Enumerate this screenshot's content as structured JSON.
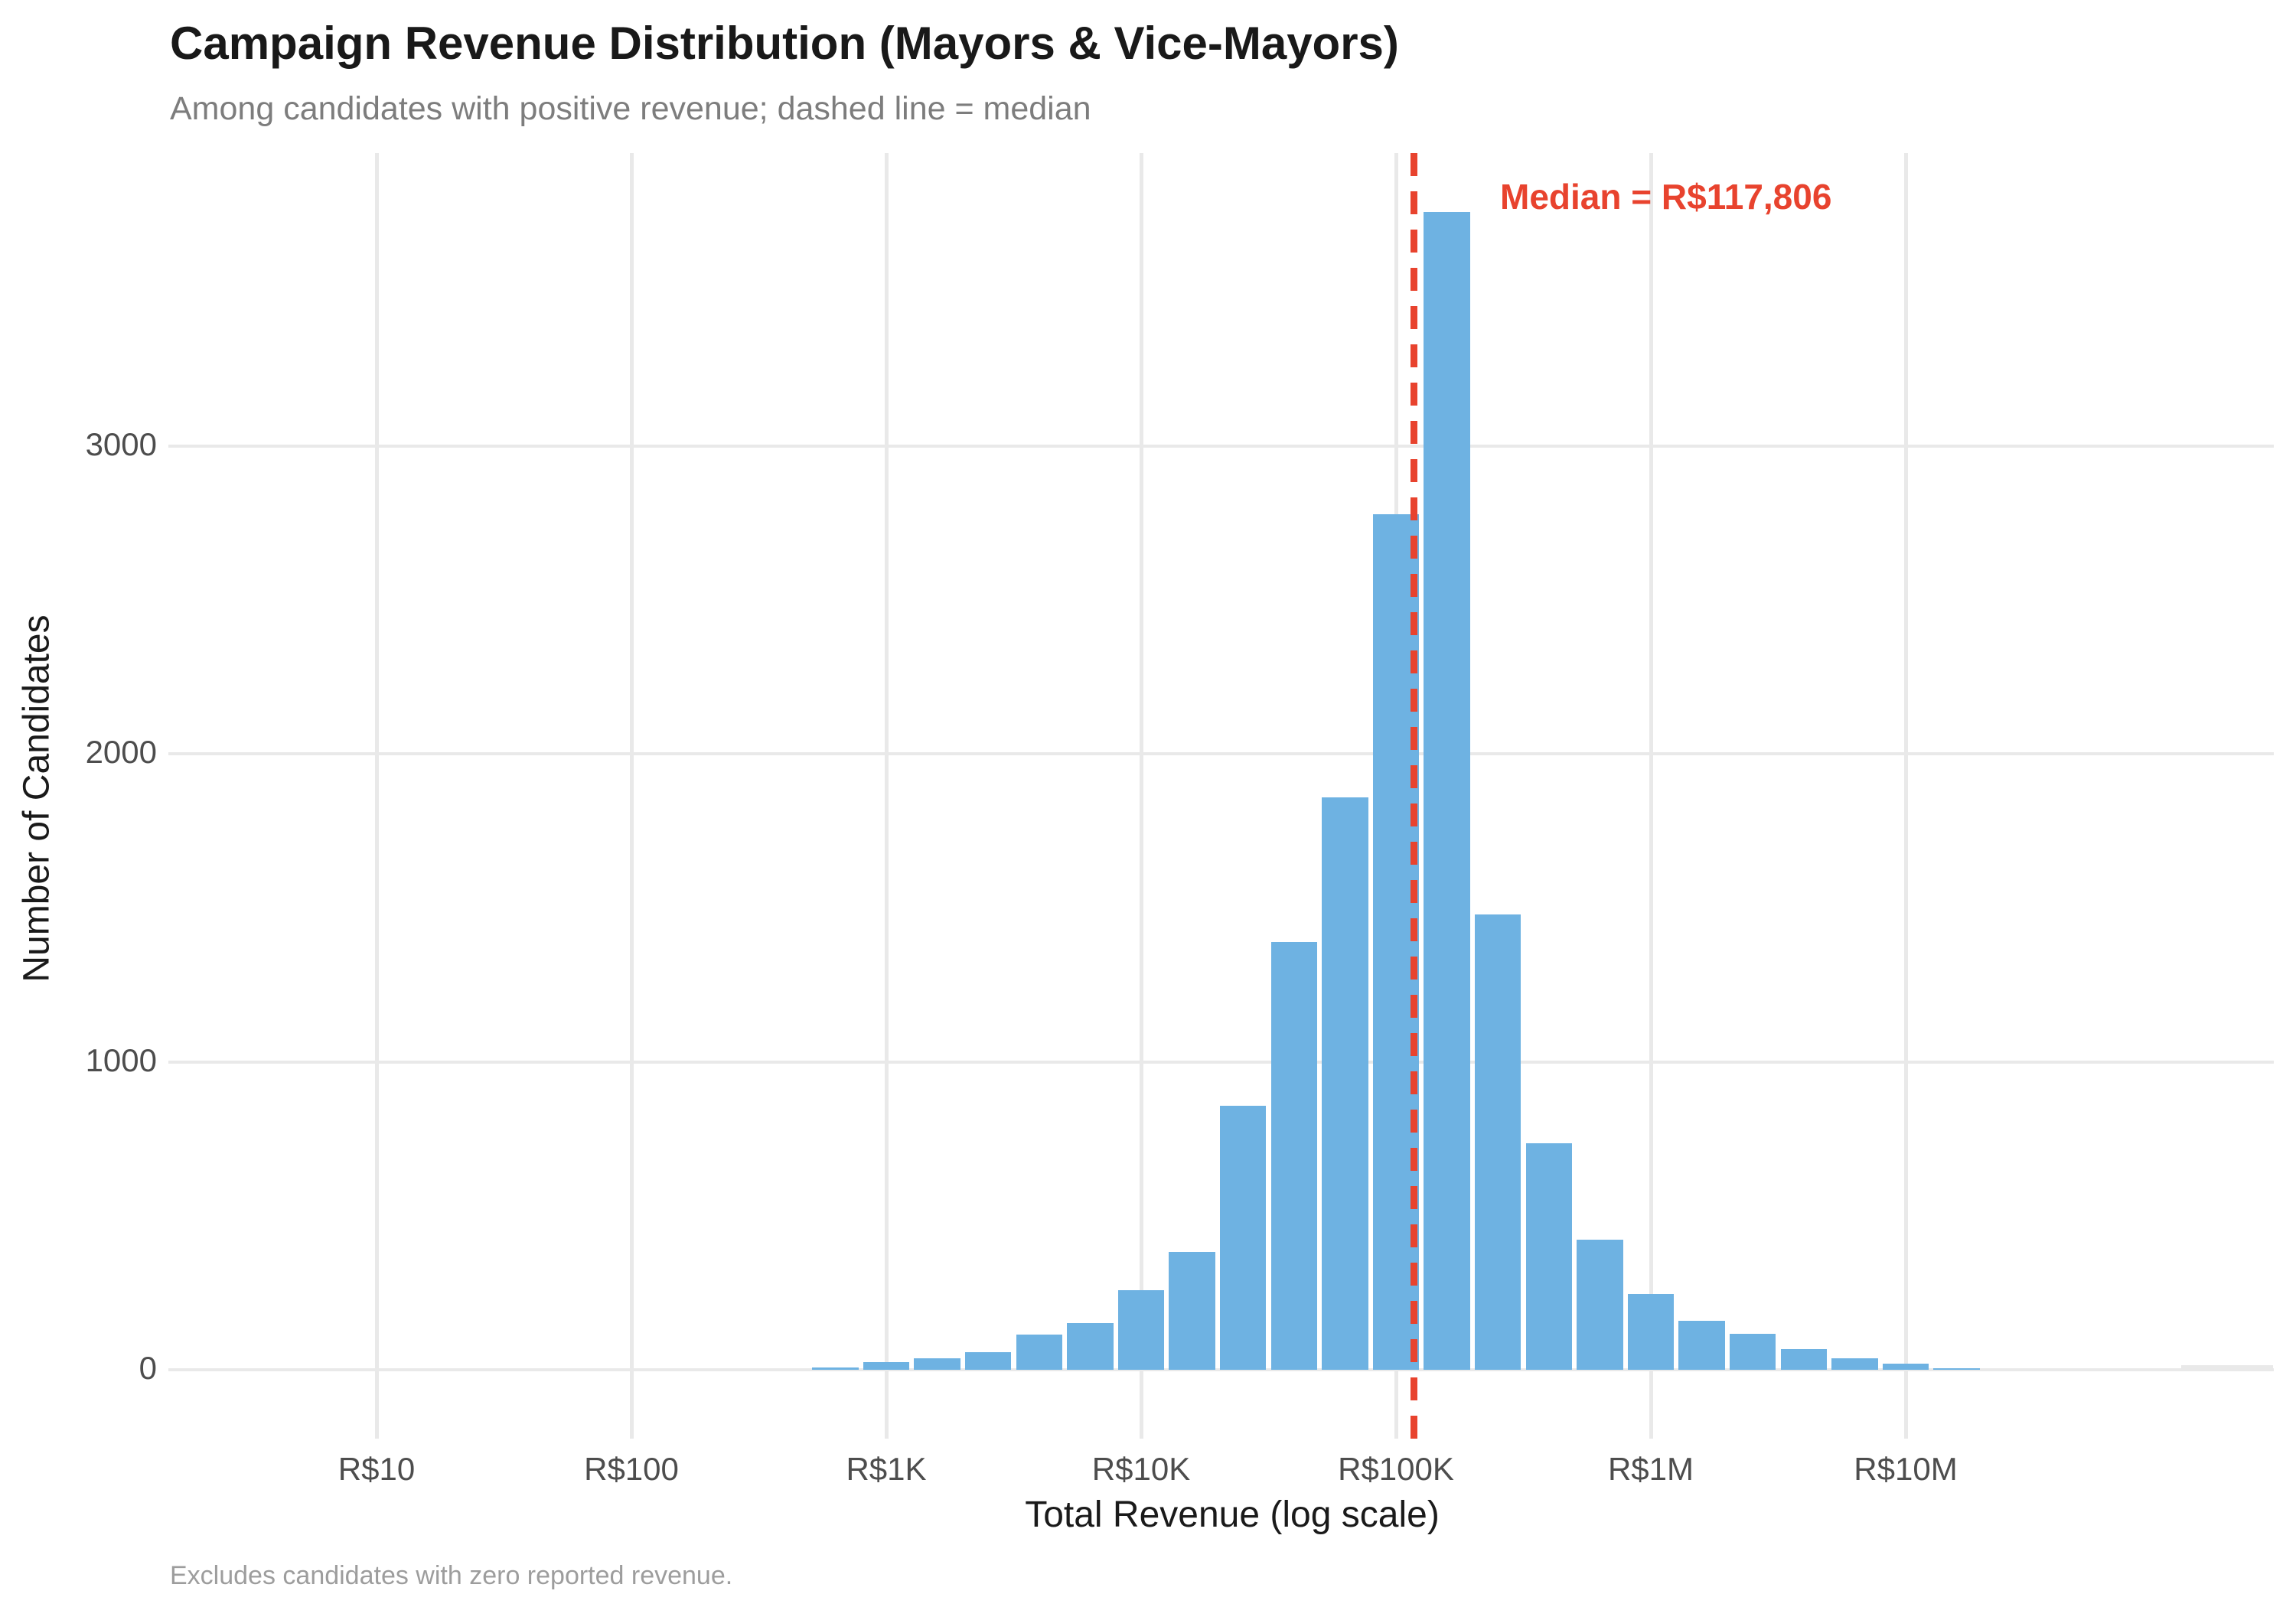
{
  "header": {
    "title": "Campaign Revenue Distribution (Mayors & Vice-Mayors)",
    "subtitle": "Among candidates with positive revenue; dashed line = median"
  },
  "caption": "Excludes candidates with zero reported revenue.",
  "chart_data": {
    "type": "bar",
    "subtype": "histogram",
    "title": "Campaign Revenue Distribution (Mayors & Vice-Mayors)",
    "subtitle": "Among candidates with positive revenue; dashed line = median",
    "xlabel": "Total Revenue (log scale)",
    "ylabel": "Number of Candidates",
    "x_scale": "log10",
    "grid": "major only",
    "legend": "none",
    "ylim": [
      -190,
      3970
    ],
    "x_ticks": [
      {
        "log10": 1,
        "label": "R$10"
      },
      {
        "log10": 2,
        "label": "R$100"
      },
      {
        "log10": 3,
        "label": "R$1K"
      },
      {
        "log10": 4,
        "label": "R$10K"
      },
      {
        "log10": 5,
        "label": "R$100K"
      },
      {
        "log10": 6,
        "label": "R$1M"
      },
      {
        "log10": 7,
        "label": "R$10M"
      }
    ],
    "y_ticks": [
      {
        "value": 0,
        "label": "0"
      },
      {
        "value": 1000,
        "label": "1000"
      },
      {
        "value": 2000,
        "label": "2000"
      },
      {
        "value": 3000,
        "label": "3000"
      }
    ],
    "bin_width_log10": 0.2,
    "bins": [
      {
        "center_log10": 2.8,
        "count": 7
      },
      {
        "center_log10": 3.0,
        "count": 25
      },
      {
        "center_log10": 3.2,
        "count": 38
      },
      {
        "center_log10": 3.4,
        "count": 57
      },
      {
        "center_log10": 3.6,
        "count": 114
      },
      {
        "center_log10": 3.8,
        "count": 151
      },
      {
        "center_log10": 4.0,
        "count": 258
      },
      {
        "center_log10": 4.2,
        "count": 383
      },
      {
        "center_log10": 4.4,
        "count": 858
      },
      {
        "center_log10": 4.6,
        "count": 1390
      },
      {
        "center_log10": 4.8,
        "count": 1860
      },
      {
        "center_log10": 5.0,
        "count": 2780
      },
      {
        "center_log10": 5.2,
        "count": 3760
      },
      {
        "center_log10": 5.4,
        "count": 1480
      },
      {
        "center_log10": 5.6,
        "count": 735
      },
      {
        "center_log10": 5.8,
        "count": 422
      },
      {
        "center_log10": 6.0,
        "count": 245
      },
      {
        "center_log10": 6.2,
        "count": 158
      },
      {
        "center_log10": 6.4,
        "count": 118
      },
      {
        "center_log10": 6.6,
        "count": 66
      },
      {
        "center_log10": 6.8,
        "count": 38
      },
      {
        "center_log10": 7.0,
        "count": 21
      },
      {
        "center_log10": 7.2,
        "count": 4
      }
    ],
    "median": {
      "value_brl": 117806,
      "log10": 5.0712,
      "label": "Median = R$117,806"
    },
    "overflow_stub": {
      "from_log10": 8.08,
      "to_log10": 8.44,
      "approx_count": 8,
      "note": "faint gray stub at right edge of panel"
    },
    "colors": {
      "bar_fill": "#6eb2e2",
      "median_line": "#e8432e",
      "median_text": "#e8432e",
      "gridline": "#e9e9e9",
      "title_text": "#191919",
      "subtitle_text": "#7d7d7d",
      "axis_title_text": "#1a1a1a",
      "tick_text": "#4d4d4d",
      "caption_text": "#9d9d9d",
      "background": "#ffffff",
      "overflow_stub": "#e9e9e9"
    }
  }
}
